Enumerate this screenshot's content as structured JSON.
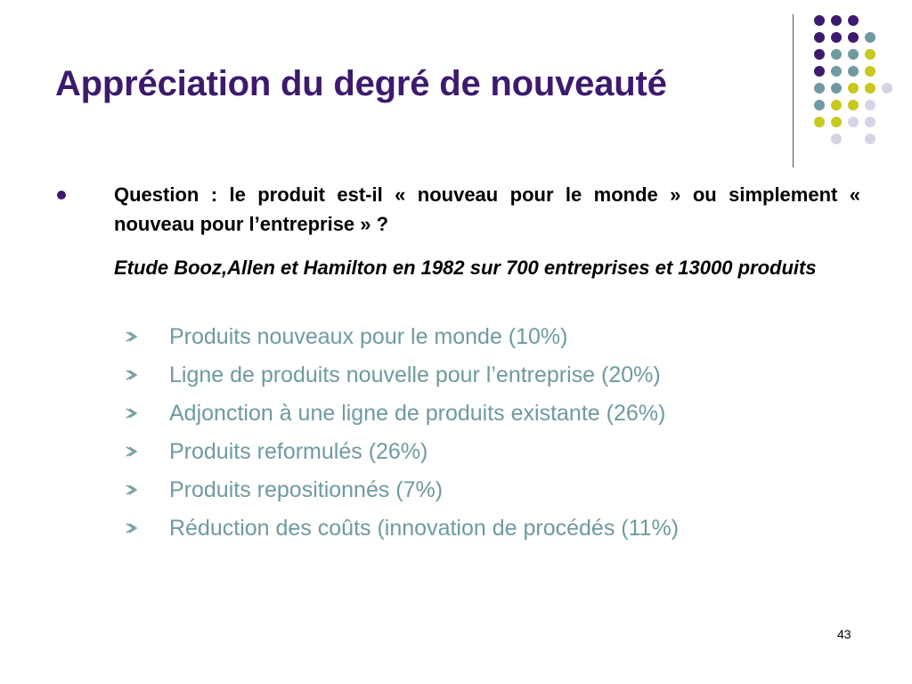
{
  "slide": {
    "title": "Appréciation du degré de nouveauté",
    "question": "Question : le produit est-il « nouveau pour le monde » ou simplement « nouveau pour l’entreprise » ?",
    "study": "Etude Booz,Allen et Hamilton en 1982 sur 700 entreprises et 13000 produits",
    "items": [
      {
        "label": "Produits nouveaux pour le monde (10%)"
      },
      {
        "label": "Ligne de produits nouvelle pour l’entreprise (20%)"
      },
      {
        "label": "Adjonction à une ligne de produits existante (26%)"
      },
      {
        "label": "Produits reformulés (26%)"
      },
      {
        "label": "Produits repositionnés (7%)"
      },
      {
        "label": "Réduction des coûts (innovation de procédés (11%)"
      }
    ],
    "page_number": "43"
  },
  "colors": {
    "title": "#3d1a6e",
    "item_text": "#6e9aa0",
    "dot_purple": "#3d1a6e",
    "dot_teal": "#6e9aa0",
    "dot_yellow": "#c8c81e",
    "dot_lavender": "#d4d4e6"
  },
  "icons": {
    "bullet": "round-bullet-icon",
    "sub_bullet": "arrow-bullet-icon"
  }
}
